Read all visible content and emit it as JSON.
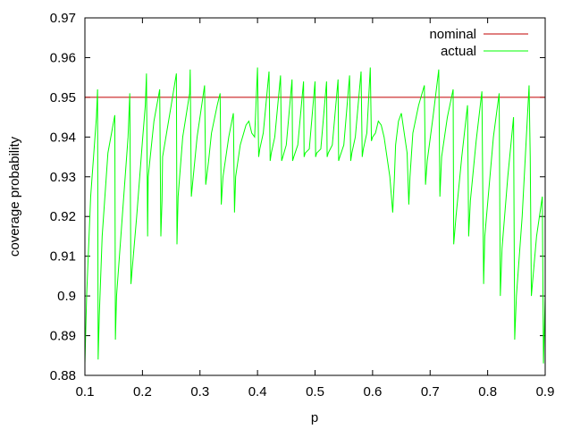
{
  "chart_data": {
    "type": "line",
    "title": "",
    "xlabel": "p",
    "ylabel": "coverage probability",
    "xlim": [
      0.1,
      0.9
    ],
    "ylim": [
      0.88,
      0.97
    ],
    "xticks": [
      "0.1",
      "0.2",
      "0.3",
      "0.4",
      "0.5",
      "0.6",
      "0.7",
      "0.8",
      "0.9"
    ],
    "yticks": [
      "0.88",
      "0.89",
      "0.9",
      "0.91",
      "0.92",
      "0.93",
      "0.94",
      "0.95",
      "0.96",
      "0.97"
    ],
    "grid": false,
    "legend_position": "top-right",
    "series": [
      {
        "name": "nominal",
        "color": "#c00000",
        "x": [
          0.1,
          0.9
        ],
        "y": [
          0.95,
          0.95
        ]
      },
      {
        "name": "actual",
        "color": "#00ff00",
        "x": [
          0.1,
          0.103,
          0.11,
          0.12,
          0.122,
          0.123,
          0.125,
          0.13,
          0.14,
          0.152,
          0.153,
          0.155,
          0.165,
          0.175,
          0.178,
          0.18,
          0.19,
          0.2,
          0.205,
          0.207,
          0.209,
          0.21,
          0.22,
          0.23,
          0.232,
          0.234,
          0.235,
          0.25,
          0.259,
          0.26,
          0.262,
          0.27,
          0.282,
          0.283,
          0.285,
          0.295,
          0.305,
          0.308,
          0.31,
          0.315,
          0.32,
          0.33,
          0.335,
          0.337,
          0.34,
          0.35,
          0.358,
          0.36,
          0.362,
          0.37,
          0.38,
          0.385,
          0.39,
          0.395,
          0.4,
          0.402,
          0.404,
          0.41,
          0.42,
          0.422,
          0.424,
          0.43,
          0.44,
          0.442,
          0.444,
          0.45,
          0.46,
          0.461,
          0.463,
          0.47,
          0.48,
          0.481,
          0.483,
          0.49,
          0.5,
          0.501,
          0.503,
          0.51,
          0.52,
          0.521,
          0.523,
          0.53,
          0.54,
          0.541,
          0.543,
          0.55,
          0.56,
          0.562,
          0.564,
          0.57,
          0.58,
          0.582,
          0.584,
          0.59,
          0.596,
          0.598,
          0.6,
          0.605,
          0.61,
          0.615,
          0.62,
          0.63,
          0.635,
          0.638,
          0.64,
          0.645,
          0.65,
          0.66,
          0.663,
          0.665,
          0.67,
          0.68,
          0.69,
          0.692,
          0.695,
          0.705,
          0.715,
          0.717,
          0.72,
          0.73,
          0.74,
          0.741,
          0.745,
          0.755,
          0.765,
          0.767,
          0.77,
          0.78,
          0.79,
          0.793,
          0.795,
          0.81,
          0.82,
          0.822,
          0.825,
          0.835,
          0.845,
          0.847,
          0.85,
          0.86,
          0.872,
          0.874,
          0.876,
          0.885,
          0.895,
          0.897,
          0.9
        ],
        "y": [
          0.883,
          0.9,
          0.925,
          0.945,
          0.952,
          0.884,
          0.895,
          0.915,
          0.936,
          0.9455,
          0.889,
          0.9,
          0.92,
          0.94,
          0.951,
          0.903,
          0.92,
          0.939,
          0.948,
          0.956,
          0.915,
          0.93,
          0.944,
          0.952,
          0.915,
          0.924,
          0.935,
          0.948,
          0.956,
          0.913,
          0.925,
          0.94,
          0.951,
          0.957,
          0.925,
          0.94,
          0.95,
          0.953,
          0.928,
          0.934,
          0.941,
          0.948,
          0.951,
          0.923,
          0.93,
          0.94,
          0.946,
          0.921,
          0.93,
          0.938,
          0.943,
          0.944,
          0.941,
          0.94,
          0.9575,
          0.935,
          0.937,
          0.941,
          0.9565,
          0.934,
          0.936,
          0.94,
          0.9555,
          0.934,
          0.935,
          0.938,
          0.9545,
          0.934,
          0.935,
          0.938,
          0.954,
          0.935,
          0.936,
          0.937,
          0.954,
          0.935,
          0.936,
          0.937,
          0.954,
          0.935,
          0.936,
          0.938,
          0.9545,
          0.934,
          0.935,
          0.938,
          0.9555,
          0.934,
          0.936,
          0.94,
          0.9565,
          0.935,
          0.937,
          0.941,
          0.9575,
          0.939,
          0.94,
          0.941,
          0.944,
          0.943,
          0.94,
          0.93,
          0.921,
          0.93,
          0.938,
          0.944,
          0.946,
          0.936,
          0.923,
          0.93,
          0.941,
          0.948,
          0.953,
          0.928,
          0.934,
          0.945,
          0.957,
          0.925,
          0.935,
          0.945,
          0.952,
          0.913,
          0.92,
          0.935,
          0.948,
          0.915,
          0.924,
          0.939,
          0.9515,
          0.903,
          0.915,
          0.94,
          0.951,
          0.9,
          0.912,
          0.93,
          0.945,
          0.889,
          0.9,
          0.92,
          0.953,
          0.935,
          0.9,
          0.915,
          0.925,
          0.883,
          0.9
        ]
      }
    ]
  }
}
